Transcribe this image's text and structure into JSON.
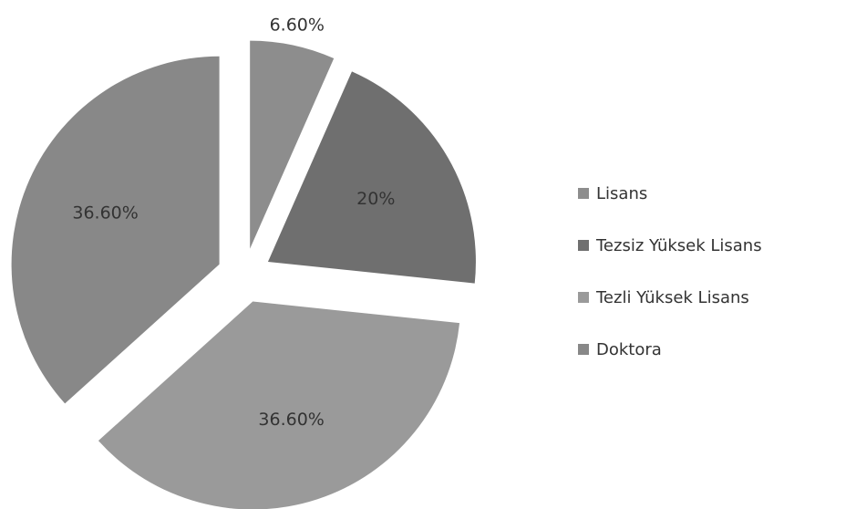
{
  "chart_data": {
    "type": "pie",
    "categories": [
      "Lisans",
      "Tezsiz Yüksek Lisans",
      "Tezli Yüksek Lisans",
      "Doktora"
    ],
    "values": [
      6.6,
      20,
      36.6,
      36.6
    ],
    "value_labels": [
      "6.60%",
      "20%",
      "36.60%",
      "36.60%"
    ],
    "colors": [
      "#8d8d8d",
      "#6f6f6f",
      "#9a9a9a",
      "#888888"
    ],
    "legend": "right"
  }
}
